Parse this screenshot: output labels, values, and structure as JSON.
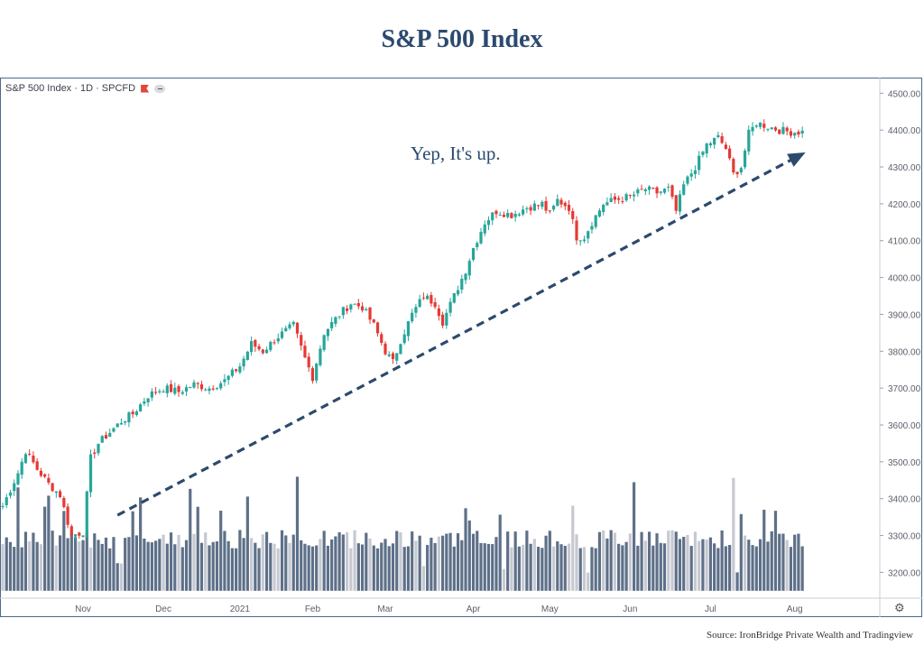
{
  "title": "S&P 500 Index",
  "source": "Source: IronBridge Private Wealth and Tradingview",
  "symbol": "S&P 500 Index · 1D · SPCFD",
  "annotation": "Yep, It's up.",
  "colors": {
    "up": "#26a69a",
    "down": "#e53935",
    "vol_dark": "#5e7088",
    "vol_light": "#c7c9d1",
    "trend": "#2c4a6e"
  },
  "chart_data": {
    "type": "candlestick",
    "title": "S&P 500 Index",
    "y_axis": {
      "side": "right",
      "ylim": [
        3130,
        4540
      ],
      "ticks": [
        3200,
        3300,
        3400,
        3500,
        3600,
        3700,
        3800,
        3900,
        4000,
        4100,
        4200,
        4300,
        4400,
        4500
      ],
      "tick_labels": [
        "3200.00",
        "3300.00",
        "3400.00",
        "3500.00",
        "3600.00",
        "3700.00",
        "3800.00",
        "3900.00",
        "4000.00",
        "4100.00",
        "4200.00",
        "4300.00",
        "4400.00",
        "4500.00"
      ]
    },
    "x_axis": {
      "months": [
        "Nov",
        "Dec",
        "2021",
        "Feb",
        "Mar",
        "Apr",
        "May",
        "Jun",
        "Jul",
        "Aug"
      ],
      "month_day_index": [
        21,
        42,
        62,
        81,
        100,
        123,
        143,
        164,
        185,
        207
      ]
    },
    "close_anchors": [
      [
        0,
        3380
      ],
      [
        4,
        3470
      ],
      [
        6,
        3530
      ],
      [
        9,
        3480
      ],
      [
        12,
        3440
      ],
      [
        15,
        3410
      ],
      [
        18,
        3300
      ],
      [
        21,
        3310
      ],
      [
        23,
        3510
      ],
      [
        25,
        3550
      ],
      [
        28,
        3580
      ],
      [
        31,
        3610
      ],
      [
        34,
        3630
      ],
      [
        38,
        3680
      ],
      [
        42,
        3700
      ],
      [
        46,
        3690
      ],
      [
        50,
        3710
      ],
      [
        54,
        3700
      ],
      [
        58,
        3720
      ],
      [
        62,
        3760
      ],
      [
        65,
        3820
      ],
      [
        68,
        3800
      ],
      [
        72,
        3840
      ],
      [
        76,
        3870
      ],
      [
        79,
        3780
      ],
      [
        81,
        3730
      ],
      [
        84,
        3850
      ],
      [
        88,
        3900
      ],
      [
        91,
        3930
      ],
      [
        94,
        3920
      ],
      [
        97,
        3870
      ],
      [
        100,
        3800
      ],
      [
        102,
        3770
      ],
      [
        104,
        3830
      ],
      [
        107,
        3900
      ],
      [
        110,
        3950
      ],
      [
        113,
        3930
      ],
      [
        115,
        3880
      ],
      [
        118,
        3950
      ],
      [
        121,
        4020
      ],
      [
        123,
        4080
      ],
      [
        126,
        4150
      ],
      [
        129,
        4180
      ],
      [
        133,
        4170
      ],
      [
        137,
        4190
      ],
      [
        141,
        4200
      ],
      [
        143,
        4170
      ],
      [
        145,
        4210
      ],
      [
        148,
        4190
      ],
      [
        150,
        4110
      ],
      [
        152,
        4110
      ],
      [
        154,
        4150
      ],
      [
        157,
        4200
      ],
      [
        160,
        4210
      ],
      [
        164,
        4220
      ],
      [
        168,
        4240
      ],
      [
        171,
        4230
      ],
      [
        174,
        4240
      ],
      [
        176,
        4180
      ],
      [
        178,
        4250
      ],
      [
        181,
        4300
      ],
      [
        184,
        4360
      ],
      [
        187,
        4380
      ],
      [
        189,
        4350
      ],
      [
        191,
        4280
      ],
      [
        193,
        4300
      ],
      [
        195,
        4390
      ],
      [
        197,
        4420
      ],
      [
        200,
        4410
      ],
      [
        203,
        4400
      ],
      [
        206,
        4395
      ]
    ],
    "volume": {
      "ylim": [
        3150,
        3500
      ],
      "relative_peaks_day": [
        4,
        12,
        36,
        49,
        64,
        77,
        110,
        165,
        191
      ]
    },
    "trendline": {
      "from": {
        "day": 30,
        "value": 3355
      },
      "to": {
        "day": 209,
        "value": 4335
      },
      "style": "dashed-arrow"
    }
  }
}
